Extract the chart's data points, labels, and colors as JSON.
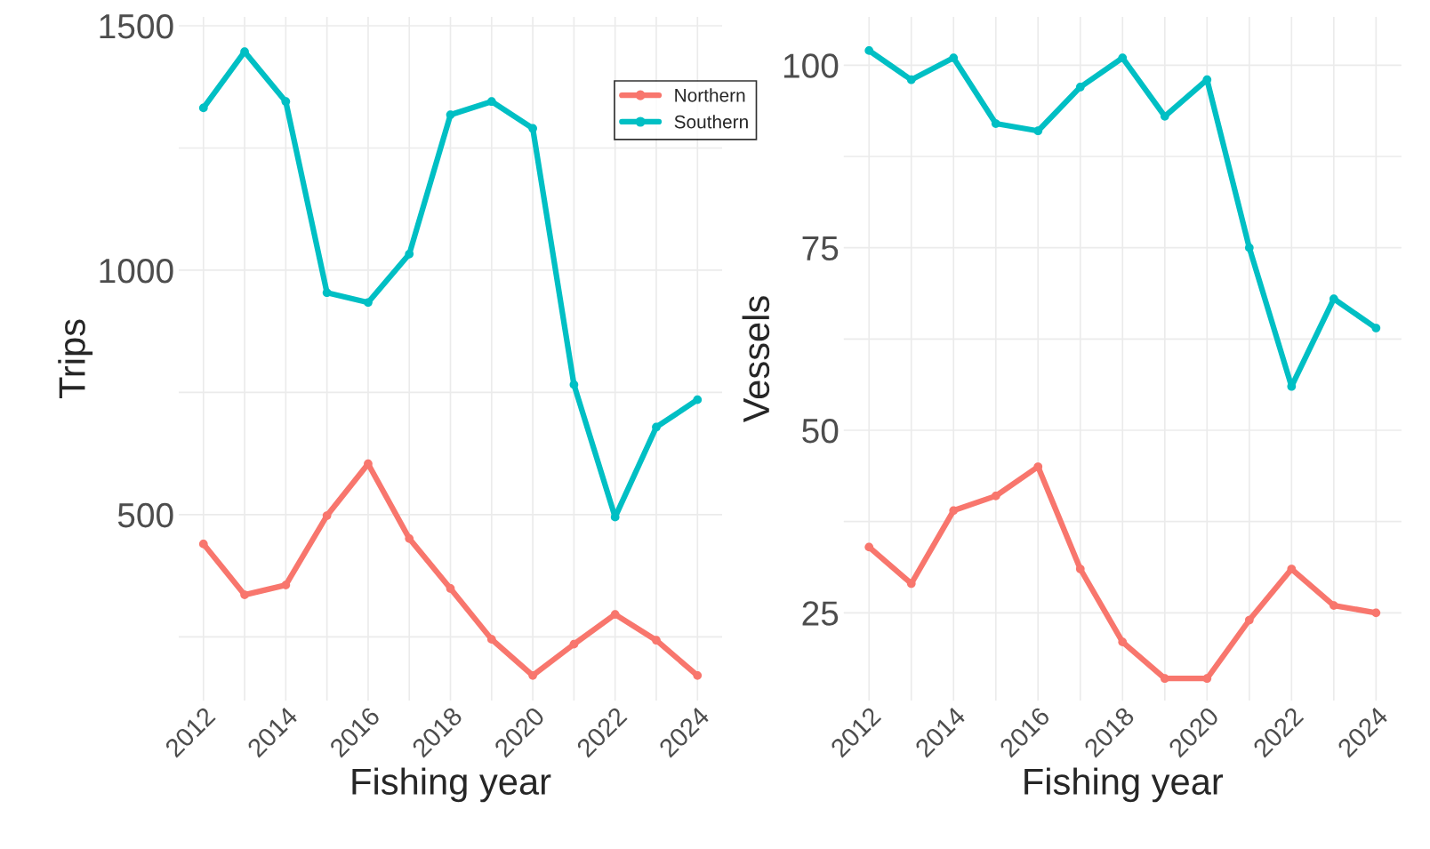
{
  "chart_data": [
    {
      "type": "line",
      "xlabel": "Fishing year",
      "ylabel": "Trips",
      "x": [
        2012,
        2013,
        2014,
        2015,
        2016,
        2017,
        2018,
        2019,
        2020,
        2021,
        2022,
        2023,
        2024
      ],
      "series": [
        {
          "name": "Northern",
          "color": "#f8766d",
          "values": [
            440,
            336,
            356,
            498,
            604,
            451,
            349,
            245,
            171,
            235,
            296,
            243,
            171
          ]
        },
        {
          "name": "Southern",
          "color": "#00bfc4",
          "values": [
            1332,
            1447,
            1345,
            954,
            934,
            1033,
            1318,
            1345,
            1290,
            766,
            495,
            679,
            735
          ]
        }
      ],
      "xlim": [
        2011.4,
        2024.6
      ],
      "ylim": [
        120,
        1518
      ],
      "xticks": [
        2012,
        {
          "value": 2013,
          "label": null
        },
        2014,
        {
          "value": 2015,
          "label": null
        },
        2016,
        {
          "value": 2017,
          "label": null
        },
        2018,
        {
          "value": 2019,
          "label": null
        },
        2020,
        {
          "value": 2021,
          "label": null
        },
        2022,
        {
          "value": 2023,
          "label": null
        },
        2024
      ],
      "yticks": [
        {
          "value": 250,
          "label": null
        },
        500,
        {
          "value": 750,
          "label": null
        },
        1000,
        {
          "value": 1250,
          "label": null
        },
        1500
      ],
      "grid": true,
      "legend": "top right",
      "marker": "circle",
      "line_style": "solid"
    },
    {
      "type": "line",
      "xlabel": "Fishing year",
      "ylabel": "Vessels",
      "x": [
        2012,
        2013,
        2014,
        2015,
        2016,
        2017,
        2018,
        2019,
        2020,
        2021,
        2022,
        2023,
        2024
      ],
      "series": [
        {
          "color": "#f8766d",
          "values": [
            34,
            29,
            39,
            41,
            45,
            31,
            21,
            16,
            16,
            24,
            31,
            26,
            25
          ]
        },
        {
          "color": "#00bfc4",
          "values": [
            102,
            98,
            101,
            92,
            91,
            97,
            101,
            93,
            98,
            75,
            56,
            68,
            64
          ]
        }
      ],
      "xlim": [
        2011.4,
        2024.6
      ],
      "ylim": [
        13,
        106.6
      ],
      "xticks": [
        2012,
        {
          "value": 2013,
          "label": null
        },
        2014,
        {
          "value": 2015,
          "label": null
        },
        2016,
        {
          "value": 2017,
          "label": null
        },
        2018,
        {
          "value": 2019,
          "label": null
        },
        2020,
        {
          "value": 2021,
          "label": null
        },
        2022,
        {
          "value": 2023,
          "label": null
        },
        2024
      ],
      "yticks": [
        25,
        {
          "value": 37.5,
          "label": null
        },
        50,
        {
          "value": 62.5,
          "label": null
        },
        75,
        {
          "value": 87.5,
          "label": null
        },
        100
      ],
      "grid": true,
      "marker": "circle",
      "line_style": "solid"
    }
  ]
}
